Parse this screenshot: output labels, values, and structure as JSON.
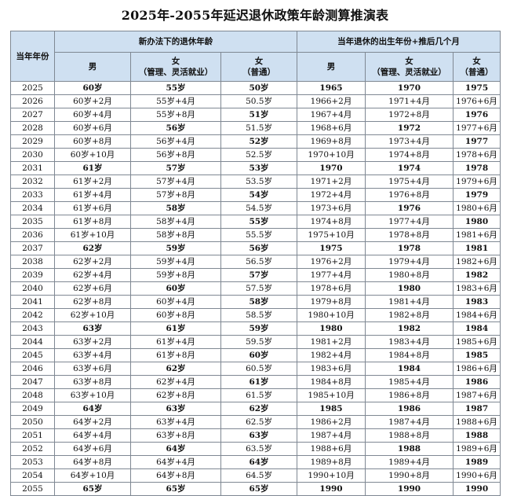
{
  "title": "2025年-2055年延迟退休政策年龄测算推演表",
  "headers": {
    "year": "当年年份",
    "group_left": "新办法下的退休年龄",
    "group_right": "当年退休的出生年份+推后几个月",
    "male": "男",
    "female_mgmt_line1": "女",
    "female_mgmt_line2": "（管理、灵活就业）",
    "female_normal_line1": "女",
    "female_normal_line2": "（普通）"
  },
  "rows": [
    [
      "2025",
      "60岁",
      "55岁",
      "50岁",
      "1965",
      "1970",
      "1975"
    ],
    [
      "2026",
      "60岁+2月",
      "55岁+4月",
      "50.5岁",
      "1966+2月",
      "1971+4月",
      "1976+6月"
    ],
    [
      "2027",
      "60岁+4月",
      "55岁+8月",
      "51岁",
      "1967+4月",
      "1972+8月",
      "1976"
    ],
    [
      "2028",
      "60岁+6月",
      "56岁",
      "51.5岁",
      "1968+6月",
      "1972",
      "1977+6月"
    ],
    [
      "2029",
      "60岁+8月",
      "56岁+4月",
      "52岁",
      "1969+8月",
      "1973+4月",
      "1977"
    ],
    [
      "2030",
      "60岁+10月",
      "56岁+8月",
      "52.5岁",
      "1970+10月",
      "1974+8月",
      "1978+6月"
    ],
    [
      "2031",
      "61岁",
      "57岁",
      "53岁",
      "1970",
      "1974",
      "1978"
    ],
    [
      "2032",
      "61岁+2月",
      "57岁+4月",
      "53.5岁",
      "1971+2月",
      "1975+4月",
      "1979+6月"
    ],
    [
      "2033",
      "61岁+4月",
      "57岁+8月",
      "54岁",
      "1972+4月",
      "1976+8月",
      "1979"
    ],
    [
      "2034",
      "61岁+6月",
      "58岁",
      "54.5岁",
      "1973+6月",
      "1976",
      "1980+6月"
    ],
    [
      "2035",
      "61岁+8月",
      "58岁+4月",
      "55岁",
      "1974+8月",
      "1977+4月",
      "1980"
    ],
    [
      "2036",
      "61岁+10月",
      "58岁+8月",
      "55.5岁",
      "1975+10月",
      "1978+8月",
      "1981+6月"
    ],
    [
      "2037",
      "62岁",
      "59岁",
      "56岁",
      "1975",
      "1978",
      "1981"
    ],
    [
      "2038",
      "62岁+2月",
      "59岁+4月",
      "56.5岁",
      "1976+2月",
      "1979+4月",
      "1982+6月"
    ],
    [
      "2039",
      "62岁+4月",
      "59岁+8月",
      "57岁",
      "1977+4月",
      "1980+8月",
      "1982"
    ],
    [
      "2040",
      "62岁+6月",
      "60岁",
      "57.5岁",
      "1978+6月",
      "1980",
      "1983+6月"
    ],
    [
      "2041",
      "62岁+8月",
      "60岁+4月",
      "58岁",
      "1979+8月",
      "1981+4月",
      "1983"
    ],
    [
      "2042",
      "62岁+10月",
      "60岁+8月",
      "58.5岁",
      "1980+10月",
      "1982+8月",
      "1984+6月"
    ],
    [
      "2043",
      "63岁",
      "61岁",
      "59岁",
      "1980",
      "1982",
      "1984"
    ],
    [
      "2044",
      "63岁+2月",
      "61岁+4月",
      "59.5岁",
      "1981+2月",
      "1983+4月",
      "1985+6月"
    ],
    [
      "2045",
      "63岁+4月",
      "61岁+8月",
      "60岁",
      "1982+4月",
      "1984+8月",
      "1985"
    ],
    [
      "2046",
      "63岁+6月",
      "62岁",
      "60.5岁",
      "1983+6月",
      "1984",
      "1986+6月"
    ],
    [
      "2047",
      "63岁+8月",
      "62岁+4月",
      "61岁",
      "1984+8月",
      "1985+4月",
      "1986"
    ],
    [
      "2048",
      "63岁+10月",
      "62岁+8月",
      "61.5岁",
      "1985+10月",
      "1986+8月",
      "1987+6月"
    ],
    [
      "2049",
      "64岁",
      "63岁",
      "62岁",
      "1985",
      "1986",
      "1987"
    ],
    [
      "2050",
      "64岁+2月",
      "63岁+4月",
      "62.5岁",
      "1986+2月",
      "1987+4月",
      "1988+6月"
    ],
    [
      "2051",
      "64岁+4月",
      "63岁+8月",
      "63岁",
      "1987+4月",
      "1988+8月",
      "1988"
    ],
    [
      "2052",
      "64岁+6月",
      "64岁",
      "63.5岁",
      "1988+6月",
      "1988",
      "1989+6月"
    ],
    [
      "2053",
      "64岁+8月",
      "64岁+4月",
      "64岁",
      "1989+8月",
      "1989+4月",
      "1989"
    ],
    [
      "2054",
      "64岁+10月",
      "64岁+8月",
      "64.5岁",
      "1990+10月",
      "1990+8月",
      "1990+6月"
    ],
    [
      "2055",
      "65岁",
      "65岁",
      "65岁",
      "1990",
      "1990",
      "1990"
    ]
  ],
  "colors": {
    "header_bg": "#cfe0f1",
    "border": "#7f8893"
  }
}
